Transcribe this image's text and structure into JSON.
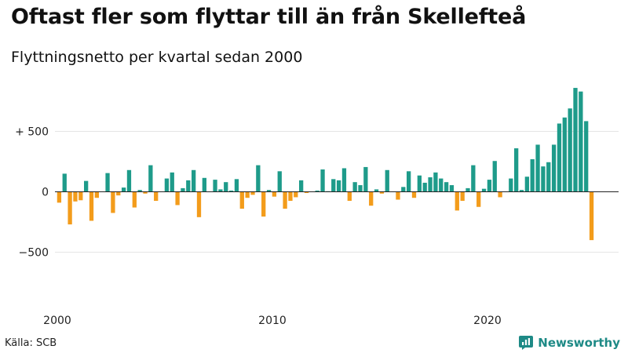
{
  "title": "Oftast fler som flyttar till än från Skellefteå",
  "subtitle": "Flyttningsnetto per kvartal sedan 2000",
  "source": "Källa: SCB",
  "brand": {
    "name": "Newsworthy",
    "icon": "bar-chart-logo-icon"
  },
  "colors": {
    "positive": "#1e9b8a",
    "negative": "#f39c1b",
    "grid": "#e5e5e5",
    "baseline": "#222222",
    "brand": "#1e8a86"
  },
  "chart_data": {
    "type": "bar",
    "title": "Oftast fler som flyttar till än från Skellefteå",
    "subtitle": "Flyttningsnetto per kvartal sedan 2000",
    "x_start": 2000,
    "x_step": 0.25,
    "x_ticks": [
      2000,
      2010,
      2020
    ],
    "x_tick_labels": [
      "2000",
      "2010",
      "2020"
    ],
    "y_ticks": [
      500,
      0,
      -500
    ],
    "y_tick_labels": [
      "+ 500",
      "0",
      "−500"
    ],
    "ylim": [
      -900,
      900
    ],
    "grid": true,
    "values": [
      -90,
      150,
      -270,
      -80,
      -70,
      90,
      -240,
      -50,
      0,
      155,
      -175,
      -30,
      35,
      180,
      -130,
      15,
      -15,
      220,
      -75,
      0,
      110,
      160,
      -110,
      30,
      95,
      180,
      -210,
      115,
      0,
      100,
      20,
      80,
      10,
      105,
      -140,
      -50,
      -25,
      220,
      -205,
      15,
      -40,
      170,
      -140,
      -75,
      -45,
      95,
      -10,
      0,
      10,
      185,
      5,
      105,
      95,
      195,
      -75,
      80,
      55,
      205,
      -115,
      20,
      -15,
      180,
      0,
      -65,
      40,
      170,
      -50,
      135,
      75,
      120,
      160,
      110,
      80,
      55,
      -155,
      -75,
      30,
      220,
      -125,
      25,
      100,
      255,
      -45,
      0,
      110,
      360,
      15,
      125,
      270,
      390,
      210,
      245,
      390,
      565,
      615,
      690,
      860,
      830,
      585,
      -400
    ]
  }
}
